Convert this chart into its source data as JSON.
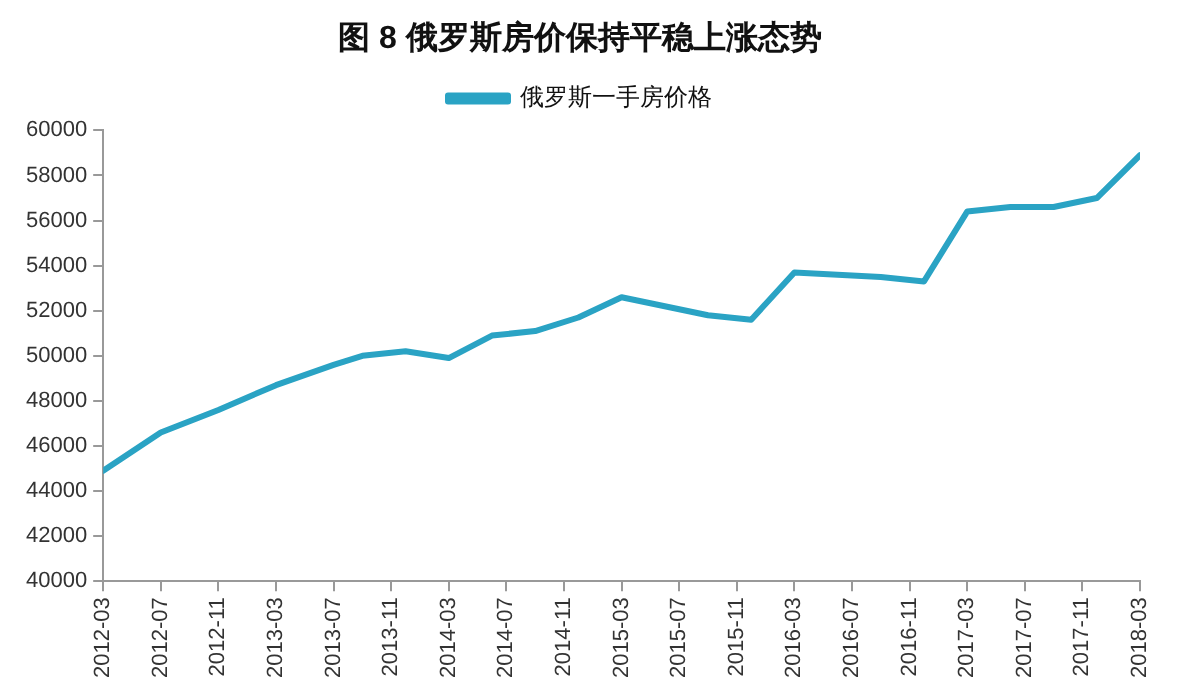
{
  "chart_data": {
    "type": "line",
    "title": "图 8 俄罗斯房价保持平稳上涨态势",
    "x": [
      "2012-03",
      "2012-07",
      "2012-11",
      "2013-03",
      "2013-07",
      "2013-09",
      "2013-12",
      "2014-03",
      "2014-06",
      "2014-09",
      "2014-12",
      "2015-03",
      "2015-09",
      "2015-12",
      "2016-03",
      "2016-09",
      "2016-12",
      "2017-03",
      "2017-06",
      "2017-09",
      "2017-12",
      "2018-03"
    ],
    "series": [
      {
        "name": "俄罗斯一手房价格",
        "color": "#2aa3c4",
        "values": [
          44900,
          46600,
          47600,
          48700,
          49600,
          50000,
          50200,
          49900,
          50900,
          51100,
          51700,
          52600,
          51800,
          51600,
          53700,
          53500,
          53300,
          56400,
          56600,
          56600,
          57000,
          58900
        ]
      }
    ],
    "xlim": [
      "2012-03",
      "2018-03"
    ],
    "xticks": [
      "2012-03",
      "2012-07",
      "2012-11",
      "2013-03",
      "2013-07",
      "2013-11",
      "2014-03",
      "2014-07",
      "2014-11",
      "2015-03",
      "2015-07",
      "2015-11",
      "2016-03",
      "2016-07",
      "2016-11",
      "2017-03",
      "2017-07",
      "2017-11",
      "2018-03"
    ],
    "ylim": [
      40000,
      60000
    ],
    "yticks": [
      40000,
      42000,
      44000,
      46000,
      48000,
      50000,
      52000,
      54000,
      56000,
      58000,
      60000
    ],
    "grid": false,
    "legend": "top",
    "marker": "none",
    "line_style": "solid"
  }
}
